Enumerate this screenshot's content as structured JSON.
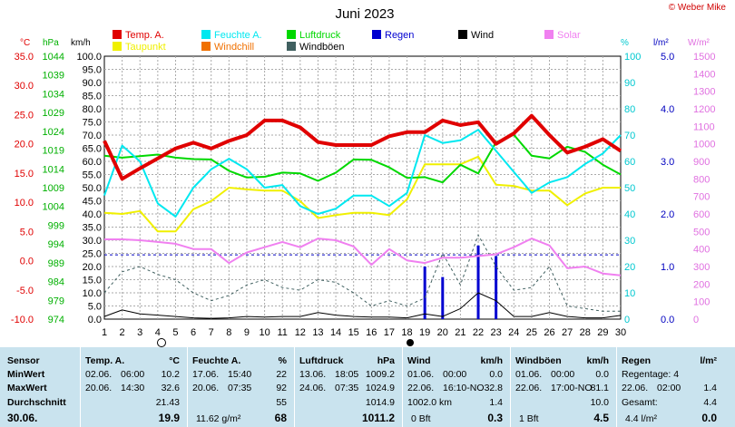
{
  "title": "Juni 2023",
  "copyright": "© Weber Mike",
  "legend": [
    {
      "label": "Temp. A.",
      "color": "#e00000"
    },
    {
      "label": "Feuchte A.",
      "color": "#00e8f0"
    },
    {
      "label": "Luftdruck",
      "color": "#00d800"
    },
    {
      "label": "Regen",
      "color": "#0000d0"
    },
    {
      "label": "Wind",
      "color": "#000000"
    },
    {
      "label": "Solar",
      "color": "#f080f0"
    },
    {
      "label": "Taupunkt",
      "color": "#f0f000"
    },
    {
      "label": "Windchill",
      "color": "#f07000"
    },
    {
      "label": "Windböen",
      "color": "#406060"
    }
  ],
  "axis_units": {
    "temp": "°C",
    "pressure": "hPa",
    "wind": "km/h",
    "humidity": "%",
    "rain": "l/m²",
    "solar": "W/m²"
  },
  "chart_data": {
    "type": "line",
    "x": [
      1,
      2,
      3,
      4,
      5,
      6,
      7,
      8,
      9,
      10,
      11,
      12,
      13,
      14,
      15,
      16,
      17,
      18,
      19,
      20,
      21,
      22,
      23,
      24,
      25,
      26,
      27,
      28,
      29,
      30
    ],
    "axes": {
      "temp": {
        "ylim": [
          -10,
          35
        ],
        "ticks": [
          "35.0",
          "30.0",
          "25.0",
          "20.0",
          "15.0",
          "10.0",
          "5.0",
          "0.0",
          "-5.0",
          "-10.0"
        ]
      },
      "pressure": {
        "ylim": [
          974,
          1044
        ],
        "ticks": [
          "1044",
          "1039",
          "1034",
          "1029",
          "1024",
          "1019",
          "1014",
          "1009",
          "1004",
          "999",
          "994",
          "989",
          "984",
          "979",
          "974"
        ]
      },
      "wind": {
        "ylim": [
          0,
          100
        ],
        "ticks": [
          "100.0",
          "95.0",
          "90.0",
          "85.0",
          "80.0",
          "75.0",
          "70.0",
          "65.0",
          "60.0",
          "55.0",
          "50.0",
          "45.0",
          "40.0",
          "35.0",
          "30.0",
          "25.0",
          "20.0",
          "15.0",
          "10.0",
          "5.0",
          "0.0"
        ]
      },
      "humidity": {
        "ylim": [
          0,
          100
        ],
        "ticks": [
          "100",
          "90",
          "80",
          "70",
          "60",
          "50",
          "40",
          "30",
          "20",
          "10",
          "0"
        ]
      },
      "rain": {
        "ylim": [
          0,
          5
        ],
        "ticks": [
          "5.0",
          "4.0",
          "3.0",
          "2.0",
          "1.0",
          "0.0"
        ]
      },
      "solar": {
        "ylim": [
          0,
          1500
        ],
        "ticks": [
          "1500",
          "1400",
          "1300",
          "1200",
          "1100",
          "1000",
          "900",
          "800",
          "700",
          "600",
          "500",
          "400",
          "300",
          "200",
          "100",
          "0"
        ]
      }
    },
    "series": [
      {
        "name": "Temp. A.",
        "axis": "temp",
        "color": "#e00000",
        "width": 4,
        "values": [
          20.5,
          14.0,
          15.8,
          17.5,
          19.2,
          20.2,
          19.2,
          20.5,
          21.5,
          24.0,
          24.0,
          22.8,
          20.3,
          19.8,
          19.8,
          19.8,
          21.3,
          22.0,
          22.0,
          24.0,
          23.2,
          23.7,
          20.0,
          21.8,
          24.8,
          21.5,
          18.5,
          19.5,
          20.8,
          18.8
        ]
      },
      {
        "name": "Feuchte A.",
        "axis": "humidity",
        "color": "#00e8f0",
        "width": 2,
        "values": [
          47,
          66,
          60,
          44,
          39,
          50,
          57,
          61,
          57,
          50,
          51,
          43,
          40,
          42,
          47,
          47,
          43,
          48,
          70,
          67,
          68,
          72,
          64,
          56,
          48,
          52,
          54,
          59,
          63,
          70
        ]
      },
      {
        "name": "Luftdruck",
        "axis": "pressure",
        "color": "#00d800",
        "width": 2,
        "values": [
          1017.5,
          1017,
          1017.4,
          1017.8,
          1017,
          1016.6,
          1016.5,
          1013.5,
          1011.7,
          1011.9,
          1013,
          1012.8,
          1010.8,
          1013,
          1016.5,
          1016.4,
          1014.4,
          1011.6,
          1011.8,
          1010.4,
          1015.1,
          1012.8,
          1021.1,
          1023.1,
          1017.5,
          1016.8,
          1019.9,
          1018.5,
          1015.1,
          1012.5
        ]
      },
      {
        "name": "Taupunkt",
        "axis": "temp",
        "color": "#f0f000",
        "width": 2,
        "values": [
          8.2,
          8.0,
          8.5,
          5.0,
          5.0,
          8.8,
          10.2,
          12.5,
          12.2,
          12.0,
          12.0,
          10.2,
          7.3,
          7.8,
          8.2,
          8.2,
          7.8,
          10.5,
          16.5,
          16.5,
          16.5,
          17.8,
          13.0,
          12.8,
          12.0,
          12.0,
          9.5,
          11.5,
          12.5,
          12.5
        ]
      },
      {
        "name": "Solar",
        "axis": "solar",
        "color": "#f080f0",
        "width": 2,
        "values": [
          455,
          455,
          450,
          440,
          430,
          400,
          400,
          320,
          380,
          410,
          440,
          410,
          460,
          450,
          415,
          310,
          400,
          335,
          320,
          350,
          350,
          360,
          370,
          410,
          460,
          420,
          290,
          300,
          260,
          250
        ]
      },
      {
        "name": "Wind",
        "axis": "wind",
        "color": "#000000",
        "width": 1,
        "values": [
          1,
          3.5,
          2,
          1.5,
          1,
          0.5,
          0.3,
          0.5,
          1,
          0.8,
          1,
          1,
          2.5,
          1.5,
          1,
          0.8,
          0.8,
          0.5,
          2,
          1,
          4,
          10,
          7,
          1,
          1,
          2.5,
          1,
          0.5,
          0.5,
          1.4
        ]
      },
      {
        "name": "Windböen",
        "axis": "wind",
        "color": "#406060",
        "width": 1,
        "dash": true,
        "values": [
          10,
          18,
          20,
          17,
          15,
          10,
          7,
          9,
          13,
          15,
          12,
          11,
          15,
          14,
          10,
          5,
          7,
          5,
          8,
          25,
          13,
          32,
          20,
          11,
          12,
          20,
          5,
          4,
          3,
          3
        ]
      }
    ],
    "rain_bars": [
      {
        "day": 19,
        "value": 1.0
      },
      {
        "day": 20,
        "value": 0.8
      },
      {
        "day": 22,
        "value": 1.4
      },
      {
        "day": 23,
        "value": 1.2
      }
    ],
    "zero_line": {
      "axis": "temp",
      "value": 1.0
    }
  },
  "stats": {
    "sensor": {
      "title": "Sensor",
      "rows": [
        "MinWert",
        "MaxWert",
        "Durchschnitt"
      ],
      "footer": "30.06."
    },
    "temp": {
      "title": "Temp. A.",
      "unit": "°C",
      "min": {
        "date": "02.06.",
        "time": "06:00",
        "value": "10.2"
      },
      "max": {
        "date": "20.06.",
        "time": "14:30",
        "value": "32.6"
      },
      "avg": "21.43",
      "current": "19.9"
    },
    "humidity": {
      "title": "Feuchte A.",
      "unit": "%",
      "min": {
        "date": "17.06.",
        "time": "15:40",
        "value": "22"
      },
      "max": {
        "date": "20.06.",
        "time": "07:35",
        "value": "92"
      },
      "avg": "55",
      "extra": "11.62 g/m²",
      "current": "68"
    },
    "pressure": {
      "title": "Luftdruck",
      "unit": "hPa",
      "min": {
        "date": "13.06.",
        "time": "18:05",
        "value": "1009.2"
      },
      "max": {
        "date": "24.06.",
        "time": "07:35",
        "value": "1024.9"
      },
      "avg": "1014.9",
      "current": "1011.2"
    },
    "wind": {
      "title": "Wind",
      "unit": "km/h",
      "min": {
        "date": "01.06.",
        "time": "00:00",
        "value": "0.0"
      },
      "max": {
        "date": "22.06.",
        "time": "16:10-NO",
        "value": "32.8"
      },
      "avg_label": "1002.0 km",
      "avg": "1.4",
      "current_label": "0 Bft",
      "current": "0.3"
    },
    "gusts": {
      "title": "Windböen",
      "unit": "km/h",
      "min": {
        "date": "01.06.",
        "time": "00:00",
        "value": "0.0"
      },
      "max": {
        "date": "22.06.",
        "time": "17:00-NO",
        "value": "81.1"
      },
      "avg": "10.0",
      "current_label": "1 Bft",
      "current": "4.5"
    },
    "rain": {
      "title": "Regen",
      "unit": "l/m²",
      "row1": "Regentage: 4",
      "max": {
        "date": "22.06.",
        "time": "02:00",
        "value": "1.4"
      },
      "total_label": "Gesamt:",
      "total": "4.4",
      "current_label": "4.4 l/m²",
      "current": "0.0"
    }
  }
}
